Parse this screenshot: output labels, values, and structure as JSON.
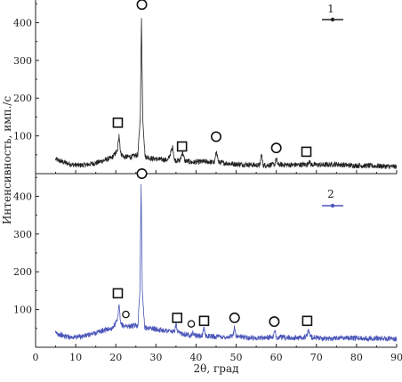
{
  "chart_data": {
    "type": "line",
    "xlabel": "2θ, град",
    "ylabel": "Интенсивность, имп./с",
    "xlim": [
      0,
      90
    ],
    "x_ticks": [
      0,
      10,
      20,
      30,
      40,
      50,
      60,
      70,
      80,
      90
    ],
    "panels": [
      {
        "ylim": [
          0,
          460
        ],
        "y_ticks": [
          100,
          200,
          300,
          400
        ],
        "series": [
          {
            "name": "1",
            "color": "#222222",
            "points": [
              [
                5,
                38
              ],
              [
                7,
                30
              ],
              [
                9,
                24
              ],
              [
                11,
                22
              ],
              [
                13,
                24
              ],
              [
                15,
                28
              ],
              [
                17,
                35
              ],
              [
                19,
                42
              ],
              [
                20.4,
                60
              ],
              [
                20.8,
                105
              ],
              [
                21.2,
                55
              ],
              [
                22,
                44
              ],
              [
                24,
                45
              ],
              [
                25.5,
                50
              ],
              [
                26.1,
                150
              ],
              [
                26.4,
                412
              ],
              [
                26.7,
                150
              ],
              [
                27.3,
                45
              ],
              [
                29,
                40
              ],
              [
                31,
                38
              ],
              [
                33,
                36
              ],
              [
                34.2,
                70
              ],
              [
                34.6,
                36
              ],
              [
                36,
                34
              ],
              [
                36.6,
                58
              ],
              [
                37.2,
                34
              ],
              [
                39,
                30
              ],
              [
                42,
                32
              ],
              [
                44.6,
                30
              ],
              [
                45.1,
                60
              ],
              [
                45.6,
                30
              ],
              [
                48,
                27
              ],
              [
                50,
                25
              ],
              [
                53,
                24
              ],
              [
                55.9,
                22
              ],
              [
                56.3,
                52
              ],
              [
                56.7,
                22
              ],
              [
                59.6,
                24
              ],
              [
                60,
                40
              ],
              [
                60.4,
                24
              ],
              [
                64,
                23
              ],
              [
                67.8,
                24
              ],
              [
                68.2,
                35
              ],
              [
                68.6,
                24
              ],
              [
                72,
                23
              ],
              [
                75,
                25
              ],
              [
                78,
                22
              ],
              [
                82,
                21
              ],
              [
                86,
                20
              ],
              [
                90,
                18
              ]
            ]
          }
        ],
        "markers": [
          {
            "shape": "square",
            "x": 20.5,
            "y": 135
          },
          {
            "shape": "circle",
            "x": 26.5,
            "y": 448
          },
          {
            "shape": "square",
            "x": 36.5,
            "y": 72
          },
          {
            "shape": "circle",
            "x": 45,
            "y": 98
          },
          {
            "shape": "circle",
            "x": 60,
            "y": 68
          },
          {
            "shape": "square",
            "x": 67.5,
            "y": 58
          }
        ]
      },
      {
        "ylim": [
          0,
          460
        ],
        "y_ticks": [
          100,
          200,
          300,
          400
        ],
        "series": [
          {
            "name": "2",
            "color": "#4a55b8",
            "points": [
              [
                5,
                38
              ],
              [
                7,
                30
              ],
              [
                9,
                27
              ],
              [
                11,
                28
              ],
              [
                13,
                32
              ],
              [
                15,
                38
              ],
              [
                17,
                45
              ],
              [
                19,
                50
              ],
              [
                20.4,
                70
              ],
              [
                20.8,
                112
              ],
              [
                21.2,
                62
              ],
              [
                22,
                56
              ],
              [
                24,
                56
              ],
              [
                25.5,
                58
              ],
              [
                26,
                150
              ],
              [
                26.3,
                432
              ],
              [
                26.6,
                150
              ],
              [
                27.2,
                52
              ],
              [
                29,
                50
              ],
              [
                31,
                46
              ],
              [
                33,
                44
              ],
              [
                34.6,
                40
              ],
              [
                35,
                64
              ],
              [
                35.4,
                38
              ],
              [
                37,
                36
              ],
              [
                38.6,
                32
              ],
              [
                39.2,
                38
              ],
              [
                40,
                30
              ],
              [
                41.6,
                30
              ],
              [
                42,
                54
              ],
              [
                42.4,
                30
              ],
              [
                45,
                28
              ],
              [
                47,
                27
              ],
              [
                49.2,
                30
              ],
              [
                49.6,
                54
              ],
              [
                50,
                30
              ],
              [
                53,
                25
              ],
              [
                56,
                25
              ],
              [
                59.2,
                27
              ],
              [
                59.6,
                42
              ],
              [
                60,
                27
              ],
              [
                63,
                25
              ],
              [
                66,
                25
              ],
              [
                67.6,
                28
              ],
              [
                68,
                48
              ],
              [
                68.4,
                28
              ],
              [
                72,
                22
              ],
              [
                76,
                26
              ],
              [
                80,
                24
              ],
              [
                85,
                24
              ],
              [
                90,
                22
              ]
            ]
          }
        ],
        "markers": [
          {
            "shape": "square",
            "x": 20.5,
            "y": 143
          },
          {
            "shape": "circle",
            "x": 26.5,
            "y": 460
          },
          {
            "shape": "circle-small",
            "x": 22.5,
            "y": 87
          },
          {
            "shape": "square",
            "x": 35.3,
            "y": 78
          },
          {
            "shape": "circle-small",
            "x": 38.8,
            "y": 62
          },
          {
            "shape": "square",
            "x": 42,
            "y": 70
          },
          {
            "shape": "circle",
            "x": 49.6,
            "y": 78
          },
          {
            "shape": "circle",
            "x": 59.5,
            "y": 68
          },
          {
            "shape": "square",
            "x": 67.7,
            "y": 70
          }
        ]
      }
    ]
  }
}
